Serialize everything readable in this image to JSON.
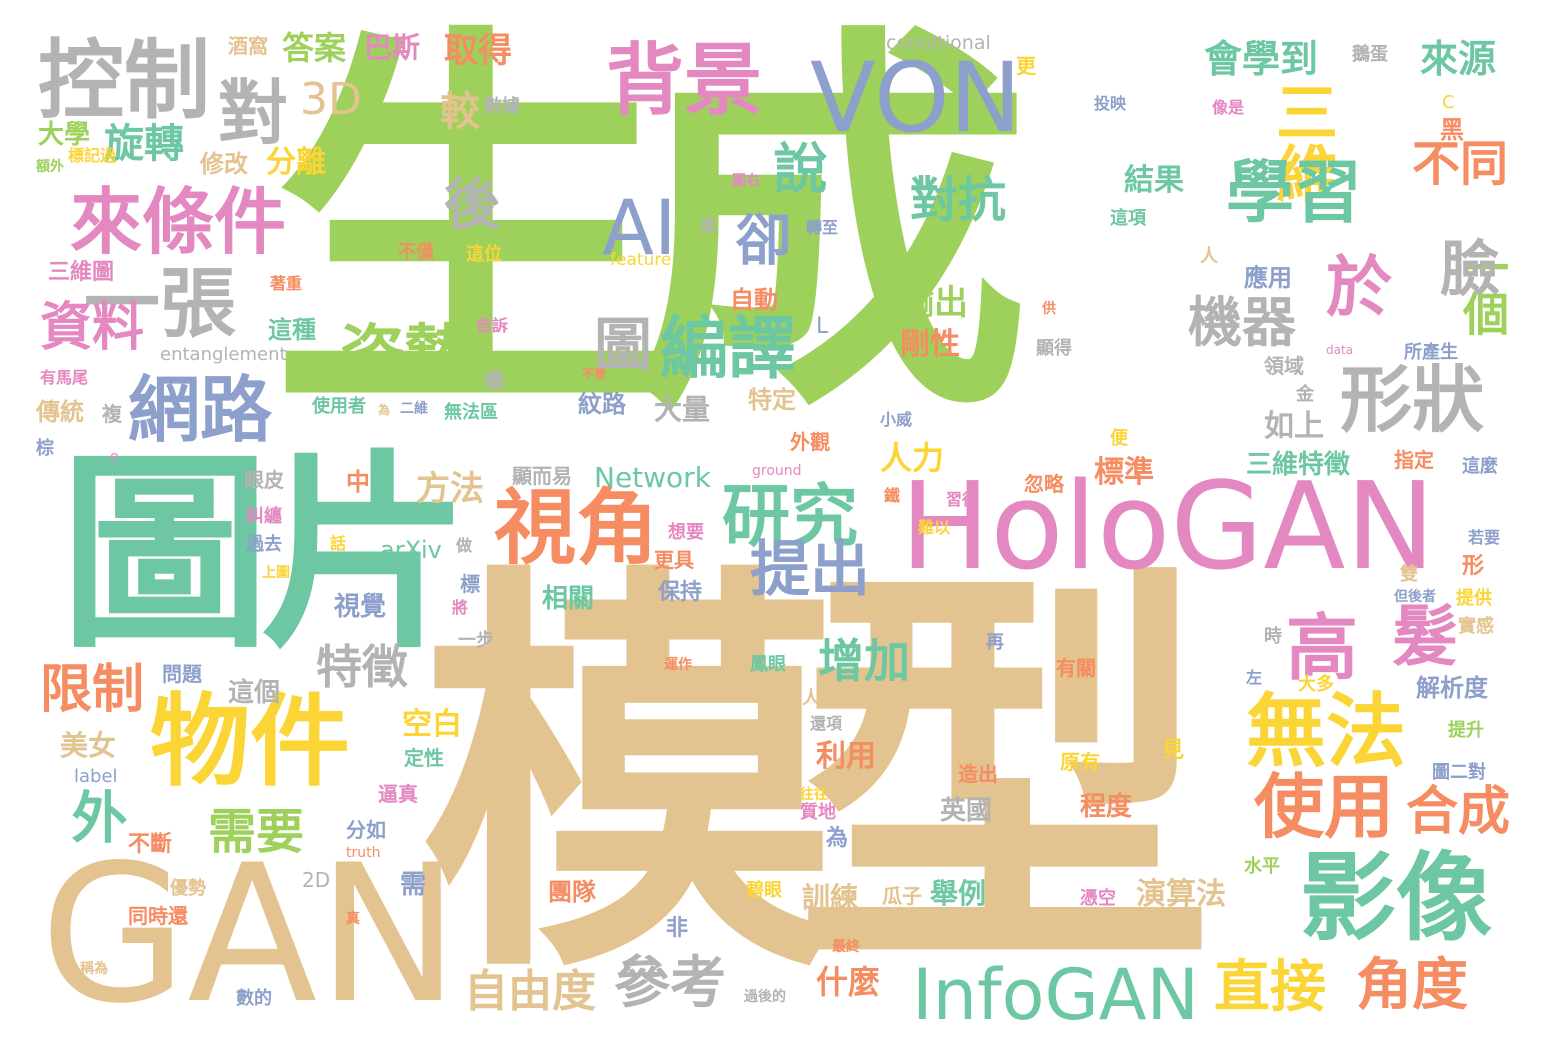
{
  "palette": {
    "green": "#9ed15c",
    "tan": "#e3c38f",
    "teal": "#6cc7a2",
    "pink": "#e488c2",
    "orange": "#f58c62",
    "yellow": "#fbd436",
    "blue": "#8da0cb",
    "gray": "#b3b3b3"
  },
  "words": {
    "w_shengcheng": "生成",
    "w_moxing": "模型",
    "w_tupian": "圖片",
    "w_gan": "GAN",
    "w_hologan": "HoloGAN",
    "w_infogan": "InfoGAN",
    "w_von": "VON",
    "w_ai": "AI",
    "w_kongzhi": "控制",
    "w_dui": "對",
    "w_3d": "3D",
    "w_beijing": "背景",
    "w_sanwei": "三維",
    "w_xuexi": "學習",
    "w_butong": "不同",
    "w_laiyuan": "來源",
    "w_huixuedao": "會學到",
    "w_laitiaojian": "來條件",
    "w_yizhang": "一張",
    "w_ziliao": "資料",
    "w_wanglu": "網路",
    "w_zishi": "姿勢",
    "w_que": "卻",
    "w_shuo": "說",
    "w_hou": "後",
    "w_tu": "圖",
    "w_bianyi": "編譯",
    "w_duikang": "對抗",
    "w_yu": "於",
    "w_yige": "一個",
    "w_lian": "臉",
    "w_jiqi": "機器",
    "w_xingzhuang": "形狀",
    "w_shijiao": "視角",
    "w_yanjiu": "研究",
    "w_tichu": "提出",
    "w_gao": "高",
    "w_fa": "髮",
    "w_wufa": "無法",
    "w_shiyong": "使用",
    "w_hecheng": "合成",
    "w_yingxiang": "影像",
    "w_wujian": "物件",
    "w_wai": "外",
    "w_xuyao": "需要",
    "w_xianzhi": "限制",
    "w_canKao": "參考",
    "w_ziyoudu": "自由度",
    "w_zhijie": "直接",
    "w_jiaodu": "角度",
    "w_zengjia": "增加",
    "w_tezheng": "特徵",
    "w_xuanzhuan": "旋轉",
    "w_fenli": "分離",
    "w_daan": "答案",
    "w_basi": "巴斯",
    "w_qude": "取得",
    "w_jiao": "較",
    "w_daxue": "大學",
    "w_xiugai": "修改",
    "w_jiuwo": "酒窩",
    "w_biaojiguo": "標記過",
    "w_ewai": "額外",
    "w_shuju": "數據",
    "w_touying": "投映",
    "w_xiangshi": "像是",
    "w_conditional": "conditional",
    "w_dandan": "鵝蛋",
    "w_geng": "更",
    "w_c": "C",
    "w_hei": "黑",
    "w_jieguo": "結果",
    "w_zhexiang": "這項",
    "w_tuyou": "圖右",
    "w_jin": "進",
    "w_zhuanzhi": "轉至",
    "w_bujin": "不僅",
    "w_zheweii": "這位",
    "w_feature": "feature",
    "w_sanweitu": "三維圖",
    "w_zhuozhong": "著重",
    "w_zidong": "自動",
    "w_shuchu": "輸出",
    "w_gaosu": "告訴",
    "w_zhezhong": "這種",
    "w_entanglement": "entanglement",
    "w_L": "L",
    "w_gangxing": "剛性",
    "w_ren": "人",
    "w_yingyong": "應用",
    "w_gong": "供",
    "w_data": "data",
    "w_suochansheng": "所產生",
    "w_xiande": "顯得",
    "w_lingyu": "領域",
    "w_youmawei": "有馬尾",
    "w_chuantong": "傳統",
    "w_fu": "複",
    "w_zong": "棕",
    "w_jin2": "儘",
    "w_shiyongzhe": "使用者",
    "w_wei2": "為",
    "w_erwei": "二維",
    "w_wufaqu": "無法區",
    "w_buguan": "不管",
    "w_wenlu": "紋路",
    "w_daliang": "大量",
    "w_teding": "特定",
    "w_xiaowei": "小威",
    "w_waiguan": "外觀",
    "w_ground": "ground",
    "w_bian": "便",
    "w_zhidding": "指定",
    "w_zheme": "這麼",
    "w_jin3": "金",
    "w_rushang": "如上",
    "w_sanweitezheng": "三維特徵",
    "w_biaozhun": "標準",
    "w_renli": "人力",
    "w_yanpi": "眼皮",
    "w_zhong": "中",
    "w_fangfa": "方法",
    "w_xianeryi": "顯而易",
    "w_network": "Network",
    "w_qi": "鐵",
    "w_hulue": "忽略",
    "w_xide": "習得",
    "w_jiuchan": "糾纏",
    "w_guoqu": "過去",
    "w_hua": "話",
    "w_arxiv": "arXiv",
    "w_zuo": "做",
    "w_xiangyao": "想要",
    "w_gengju": "更具",
    "w_nanyi": "難以",
    "w_ruoyao": "若要",
    "w_shangtu": "上圖",
    "w_biao": "標",
    "w_baochi": "保持",
    "w_xing": "形",
    "w_dan": "但後者",
    "w_shuang": "雙",
    "w_jiang": "將",
    "w_xiangguan": "相關",
    "w_tigong": "提供",
    "w_shijue": "視覺",
    "w_yibu": "一步",
    "w_shi": "時",
    "w_shigan": "實感",
    "w_zai": "再",
    "w_wenti": "問題",
    "w_yunzuo": "運作",
    "w_fengyan": "鳳眼",
    "w_youguan": "有關",
    "w_zuo2": "左",
    "w_dadu": "大多",
    "w_jiexidu": "解析度",
    "w_zhege": "這個",
    "w_renlei": "人類",
    "w_huanxiang": "還項",
    "w_meinu": "美女",
    "w_kongbai": "空白",
    "w_liyong": "利用",
    "w_tisheng": "提升",
    "w_label": "label",
    "w_dingxing": "定性",
    "w_zaochu": "造出",
    "w_yuanyou": "原有",
    "w_jian": "見",
    "w_tuerdui": "圖二對",
    "w_bizhen": "逼真",
    "w_yingguo": "英國",
    "w_chengdu": "程度",
    "w_wangwang": "往往",
    "w_fenru": "分如",
    "w_buduan": "不斷",
    "w_zhidi": "質地",
    "w_wei": "為",
    "w_truth": "truth",
    "w_2d": "2D",
    "w_xu": "需",
    "w_shuiping": "水平",
    "w_youshi": "優勢",
    "w_tuandui": "團隊",
    "w_biyan": "碧眼",
    "w_xunlian": "訓練",
    "w_guazi": "瓜子",
    "w_juli": "舉例",
    "w_pingkong": "憑空",
    "w_yansuanfa": "演算法",
    "w_tongshihai": "同時還",
    "w_fei": "非",
    "w_zhen": "真",
    "w_mu": "穆",
    "w_zuizhong": "最終",
    "w_chengwei": "稱為",
    "w_shenme": "什麼",
    "w_shude": "數的",
    "w_guohoude": "過後的",
    "w_e": "e"
  }
}
